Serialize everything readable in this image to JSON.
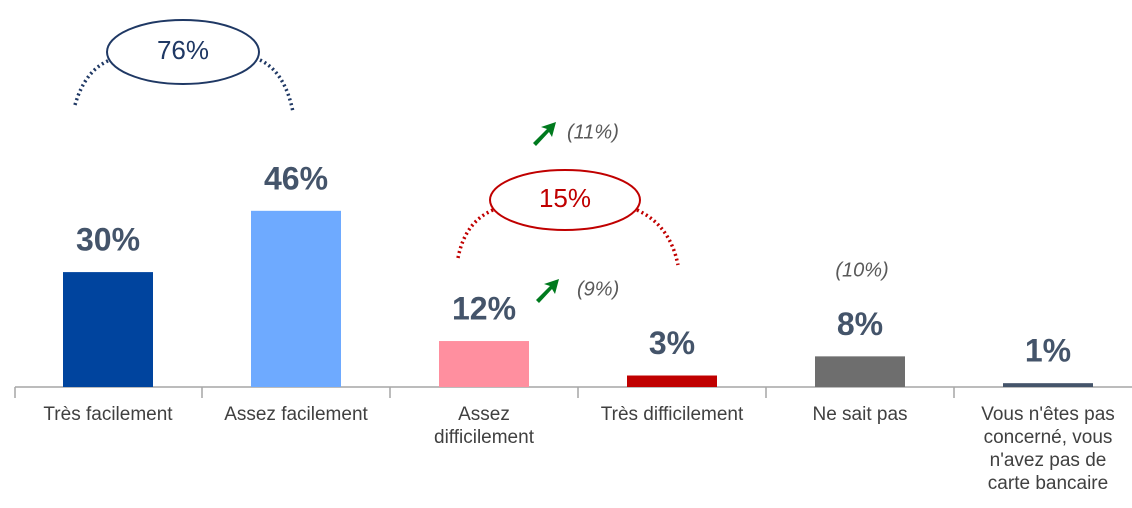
{
  "chart_data": {
    "type": "bar",
    "categories": [
      "Très facilement",
      "Assez facilement",
      "Assez\ndifficilement",
      "Très difficilement",
      "Ne sait pas",
      "Vous n'êtes pas\nconcerné, vous\nn'avez pas de\ncarte bancaire"
    ],
    "values": [
      30,
      46,
      12,
      3,
      8,
      1
    ],
    "value_labels": [
      "30%",
      "46%",
      "12%",
      "3%",
      "8%",
      "1%"
    ],
    "colors": [
      "#00449e",
      "#6eaaff",
      "#ff8f9f",
      "#c00000",
      "#6e6e6e",
      "#44546a"
    ],
    "annotations": [
      {
        "text": "76%"
      },
      {
        "text": "15%"
      },
      {
        "text": "(11%)"
      },
      {
        "text": "(9%)"
      },
      {
        "text": "(10%)"
      }
    ]
  }
}
